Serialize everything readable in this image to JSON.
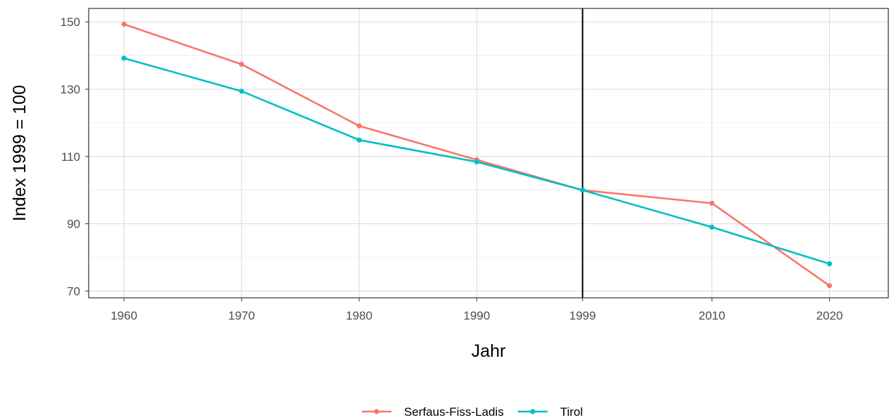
{
  "chart_data": {
    "type": "line",
    "x": [
      1960,
      1970,
      1980,
      1990,
      1999,
      2010,
      2020
    ],
    "x_tick_labels": [
      "1960",
      "1970",
      "1980",
      "1990",
      "1999",
      "2010",
      "2020"
    ],
    "y_ticks": [
      70,
      90,
      110,
      130,
      150
    ],
    "y_tick_labels": [
      "70",
      "90",
      "110",
      "130",
      "150"
    ],
    "xlim": [
      1957,
      2025
    ],
    "ylim": [
      68,
      154
    ],
    "xlabel": "Jahr",
    "ylabel": "Index 1999 = 100",
    "reference_line_x": 1999,
    "grid": true,
    "legend_position": "bottom",
    "series": [
      {
        "name": "Serfaus-Fiss-Ladis",
        "color": "#F8766D",
        "values": [
          149.3,
          137.4,
          119.1,
          109.0,
          100.0,
          96.1,
          71.6
        ]
      },
      {
        "name": "Tirol",
        "color": "#00BFC4",
        "values": [
          139.2,
          129.4,
          114.9,
          108.4,
          100.0,
          89.0,
          78.1
        ]
      }
    ]
  }
}
